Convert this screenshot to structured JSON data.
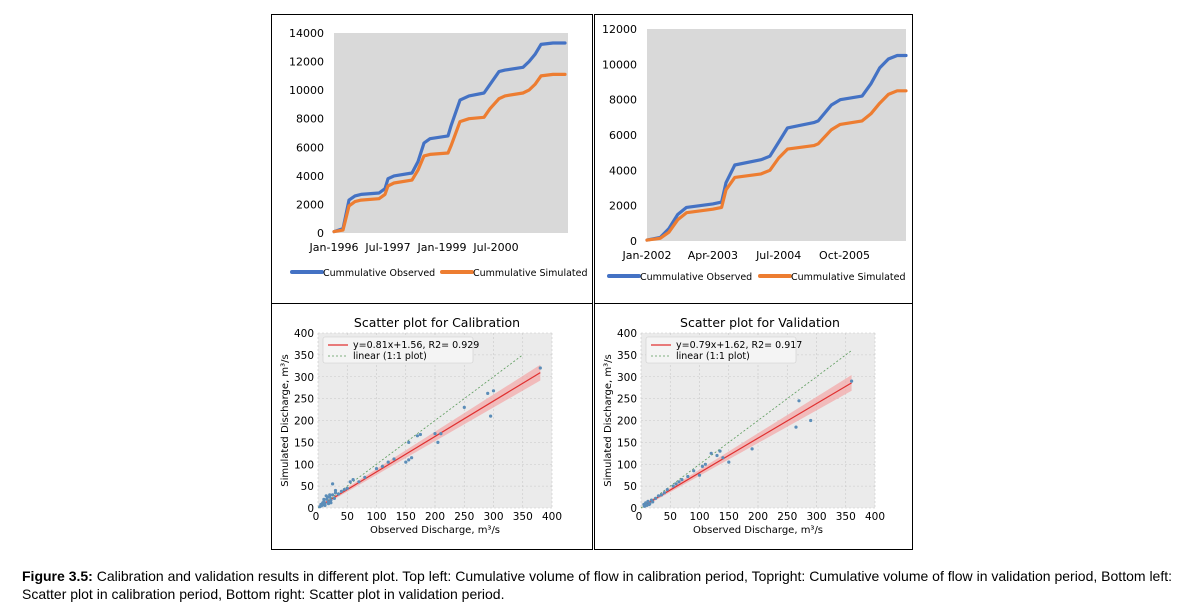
{
  "caption": {
    "label": "Figure 3.5:",
    "text": "Calibration and validation results in different plot. Top left: Cumulative volume of flow in calibration period, Topright: Cumulative volume of flow in validation period, Bottom left: Scatter plot in calibration period, Bottom right: Scatter plot in validation period."
  },
  "colors": {
    "observed": "#4472c4",
    "simulated": "#ed7d31",
    "plot_bg": "#d9d9d9",
    "scatter_bg": "#ebebeb",
    "fit": "#e03030",
    "band": "#f3a7a7",
    "points": "#5b8db8"
  },
  "chart_data": [
    {
      "type": "line",
      "title": "",
      "x_ticks": [
        "Jan-1996",
        "Jul-1997",
        "Jan-1999",
        "Jul-2000"
      ],
      "x_range": [
        "1996-01",
        "2002-07"
      ],
      "ylim": [
        0,
        14000
      ],
      "y_ticks": [
        0,
        2000,
        4000,
        6000,
        8000,
        10000,
        12000,
        14000
      ],
      "grid": false,
      "legend": "bottom",
      "series": [
        {
          "name": "Cummulative Observed",
          "x": [
            "1996-01",
            "1996-04",
            "1996-06",
            "1996-08",
            "1996-10",
            "1997-04",
            "1997-06",
            "1997-07",
            "1997-09",
            "1998-03",
            "1998-05",
            "1998-07",
            "1998-09",
            "1999-03",
            "1999-04",
            "1999-07",
            "1999-10",
            "2000-03",
            "2000-05",
            "2000-08",
            "2000-10",
            "2001-04",
            "2001-06",
            "2001-08",
            "2001-10",
            "2002-02",
            "2002-04",
            "2002-06"
          ],
          "values": [
            100,
            300,
            2300,
            2600,
            2700,
            2800,
            3100,
            3800,
            4000,
            4200,
            5000,
            6300,
            6600,
            6800,
            7500,
            9300,
            9600,
            9800,
            10400,
            11300,
            11400,
            11600,
            12000,
            12500,
            13200,
            13300,
            13300,
            13300
          ]
        },
        {
          "name": "Cummulative Simulated",
          "x": [
            "1996-01",
            "1996-04",
            "1996-06",
            "1996-08",
            "1996-10",
            "1997-04",
            "1997-06",
            "1997-07",
            "1997-09",
            "1998-03",
            "1998-05",
            "1998-07",
            "1998-09",
            "1999-03",
            "1999-04",
            "1999-07",
            "1999-10",
            "2000-03",
            "2000-05",
            "2000-08",
            "2000-10",
            "2001-04",
            "2001-06",
            "2001-08",
            "2001-10",
            "2002-02",
            "2002-04",
            "2002-06"
          ],
          "values": [
            100,
            200,
            1900,
            2200,
            2300,
            2400,
            2700,
            3300,
            3500,
            3700,
            4400,
            5400,
            5500,
            5600,
            6100,
            7800,
            8000,
            8100,
            8700,
            9400,
            9600,
            9800,
            10000,
            10400,
            11000,
            11100,
            11100,
            11100
          ]
        }
      ]
    },
    {
      "type": "line",
      "title": "",
      "x_ticks": [
        "Jan-2002",
        "Apr-2003",
        "Jul-2004",
        "Oct-2005"
      ],
      "x_range": [
        "2002-01",
        "2006-12"
      ],
      "ylim": [
        0,
        12000
      ],
      "y_ticks": [
        0,
        2000,
        4000,
        6000,
        8000,
        10000,
        12000
      ],
      "grid": false,
      "legend": "bottom",
      "series": [
        {
          "name": "Cummulative Observed",
          "x": [
            "2002-01",
            "2002-04",
            "2002-06",
            "2002-08",
            "2002-10",
            "2003-04",
            "2003-06",
            "2003-07",
            "2003-09",
            "2004-03",
            "2004-05",
            "2004-07",
            "2004-09",
            "2005-03",
            "2005-04",
            "2005-07",
            "2005-09",
            "2006-02",
            "2006-04",
            "2006-06",
            "2006-08",
            "2006-10",
            "2006-12"
          ],
          "values": [
            50,
            200,
            700,
            1500,
            1900,
            2100,
            2200,
            3300,
            4300,
            4600,
            4800,
            5600,
            6400,
            6700,
            6800,
            7700,
            8000,
            8200,
            8900,
            9800,
            10300,
            10500,
            10500
          ]
        },
        {
          "name": "Cummulative Simulated",
          "x": [
            "2002-01",
            "2002-04",
            "2002-06",
            "2002-08",
            "2002-10",
            "2003-04",
            "2003-06",
            "2003-07",
            "2003-09",
            "2004-03",
            "2004-05",
            "2004-07",
            "2004-09",
            "2005-03",
            "2005-04",
            "2005-07",
            "2005-09",
            "2006-02",
            "2006-04",
            "2006-06",
            "2006-08",
            "2006-10",
            "2006-12"
          ],
          "values": [
            50,
            150,
            500,
            1200,
            1600,
            1800,
            1900,
            2900,
            3600,
            3800,
            4000,
            4700,
            5200,
            5400,
            5500,
            6300,
            6600,
            6800,
            7200,
            7800,
            8300,
            8500,
            8500
          ]
        }
      ]
    },
    {
      "type": "scatter",
      "title": "Scatter plot for Calibration",
      "xlabel": "Observed Discharge, m³/s",
      "ylabel": "Simulated Discharge, m³/s",
      "xlim": [
        0,
        400
      ],
      "ylim": [
        0,
        400
      ],
      "x_ticks": [
        0,
        50,
        100,
        150,
        200,
        250,
        300,
        350,
        400
      ],
      "y_ticks": [
        0,
        50,
        100,
        150,
        200,
        250,
        300,
        350,
        400
      ],
      "grid": true,
      "legend": "top-left",
      "fit_label": "y=0.81x+1.56, R2= 0.929",
      "identity_label": "linear (1:1 plot)",
      "fit": {
        "slope": 0.81,
        "intercept": 1.56,
        "x": [
          5,
          380
        ]
      },
      "identity_x": [
        0,
        350
      ],
      "points": [
        [
          5,
          8
        ],
        [
          8,
          12
        ],
        [
          10,
          15
        ],
        [
          12,
          10
        ],
        [
          15,
          20
        ],
        [
          18,
          14
        ],
        [
          20,
          25
        ],
        [
          22,
          18
        ],
        [
          25,
          30
        ],
        [
          28,
          22
        ],
        [
          30,
          35
        ],
        [
          10,
          20
        ],
        [
          14,
          28
        ],
        [
          16,
          25
        ],
        [
          20,
          30
        ],
        [
          25,
          55
        ],
        [
          30,
          40
        ],
        [
          35,
          32
        ],
        [
          40,
          38
        ],
        [
          45,
          42
        ],
        [
          50,
          45
        ],
        [
          55,
          60
        ],
        [
          60,
          65
        ],
        [
          70,
          60
        ],
        [
          80,
          70
        ],
        [
          100,
          90
        ],
        [
          110,
          95
        ],
        [
          120,
          105
        ],
        [
          130,
          112
        ],
        [
          150,
          105
        ],
        [
          155,
          110
        ],
        [
          160,
          115
        ],
        [
          155,
          150
        ],
        [
          170,
          165
        ],
        [
          175,
          168
        ],
        [
          200,
          170
        ],
        [
          205,
          150
        ],
        [
          210,
          170
        ],
        [
          250,
          230
        ],
        [
          290,
          262
        ],
        [
          295,
          210
        ],
        [
          300,
          268
        ],
        [
          380,
          320
        ],
        [
          3,
          3
        ],
        [
          6,
          5
        ],
        [
          9,
          7
        ],
        [
          12,
          6
        ],
        [
          18,
          10
        ],
        [
          22,
          12
        ]
      ]
    },
    {
      "type": "scatter",
      "title": "Scatter plot for Validation",
      "xlabel": "Observed Discharge, m³/s",
      "ylabel": "Simulated Discharge, m³/s",
      "xlim": [
        0,
        400
      ],
      "ylim": [
        0,
        400
      ],
      "x_ticks": [
        0,
        50,
        100,
        150,
        200,
        250,
        300,
        350,
        400
      ],
      "y_ticks": [
        0,
        50,
        100,
        150,
        200,
        250,
        300,
        350,
        400
      ],
      "grid": true,
      "legend": "top-left",
      "fit_label": "y=0.79x+1.62, R2= 0.917",
      "identity_label": "linear (1:1 plot)",
      "fit": {
        "slope": 0.79,
        "intercept": 1.62,
        "x": [
          5,
          360
        ]
      },
      "identity_x": [
        0,
        360
      ],
      "points": [
        [
          5,
          8
        ],
        [
          8,
          12
        ],
        [
          10,
          6
        ],
        [
          12,
          15
        ],
        [
          15,
          10
        ],
        [
          18,
          18
        ],
        [
          20,
          14
        ],
        [
          25,
          22
        ],
        [
          30,
          28
        ],
        [
          35,
          30
        ],
        [
          40,
          35
        ],
        [
          45,
          42
        ],
        [
          55,
          50
        ],
        [
          60,
          55
        ],
        [
          65,
          60
        ],
        [
          70,
          65
        ],
        [
          80,
          72
        ],
        [
          90,
          85
        ],
        [
          100,
          75
        ],
        [
          105,
          95
        ],
        [
          110,
          100
        ],
        [
          120,
          125
        ],
        [
          130,
          120
        ],
        [
          135,
          130
        ],
        [
          140,
          115
        ],
        [
          150,
          105
        ],
        [
          190,
          135
        ],
        [
          265,
          185
        ],
        [
          270,
          245
        ],
        [
          290,
          200
        ],
        [
          360,
          290
        ],
        [
          6,
          4
        ],
        [
          9,
          9
        ],
        [
          14,
          8
        ]
      ]
    }
  ]
}
